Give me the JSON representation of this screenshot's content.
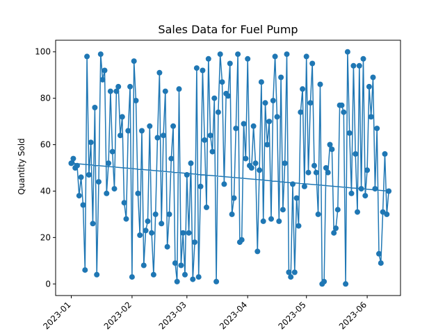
{
  "chart_data": {
    "type": "line",
    "title": "Sales Data for Fuel Pump",
    "xlabel": "",
    "ylabel": "Quantity Sold",
    "xlim": [
      "2022-12-24",
      "2023-06-18"
    ],
    "ylim": [
      -5,
      105
    ],
    "x_ticks": [
      "2023-01",
      "2023-02",
      "2023-03",
      "2023-04",
      "2023-05",
      "2023-06"
    ],
    "y_ticks": [
      0,
      20,
      40,
      60,
      80,
      100
    ],
    "grid": false,
    "legend": "none",
    "color": "#1f77b4",
    "markers": "circle",
    "series": [
      {
        "x": [
          "2023-01-01",
          "2023-01-02",
          "2023-01-03",
          "2023-01-04",
          "2023-01-05",
          "2023-01-06",
          "2023-01-07",
          "2023-01-08",
          "2023-01-09",
          "2023-01-10",
          "2023-01-11",
          "2023-01-12",
          "2023-01-13",
          "2023-01-14",
          "2023-01-15",
          "2023-01-16",
          "2023-01-17",
          "2023-01-18",
          "2023-01-19",
          "2023-01-20",
          "2023-01-21",
          "2023-01-22",
          "2023-01-23",
          "2023-01-24",
          "2023-01-25",
          "2023-01-26",
          "2023-01-27",
          "2023-01-28",
          "2023-01-29",
          "2023-01-30",
          "2023-01-31",
          "2023-02-01",
          "2023-02-02",
          "2023-02-03",
          "2023-02-04",
          "2023-02-05",
          "2023-02-06",
          "2023-02-07",
          "2023-02-08",
          "2023-02-09",
          "2023-02-10",
          "2023-02-11",
          "2023-02-12",
          "2023-02-13",
          "2023-02-14",
          "2023-02-15",
          "2023-02-16",
          "2023-02-17",
          "2023-02-18",
          "2023-02-19",
          "2023-02-20",
          "2023-02-21",
          "2023-02-22",
          "2023-02-23",
          "2023-02-24",
          "2023-02-25",
          "2023-02-26",
          "2023-02-27",
          "2023-02-28",
          "2023-03-01",
          "2023-03-02",
          "2023-03-03",
          "2023-03-04",
          "2023-03-05",
          "2023-03-06",
          "2023-03-07",
          "2023-03-08",
          "2023-03-09",
          "2023-03-10",
          "2023-03-11",
          "2023-03-12",
          "2023-03-13",
          "2023-03-14",
          "2023-03-15",
          "2023-03-16",
          "2023-03-17",
          "2023-03-18",
          "2023-03-19",
          "2023-03-20",
          "2023-03-21",
          "2023-03-22",
          "2023-03-23",
          "2023-03-24",
          "2023-03-25",
          "2023-03-26",
          "2023-03-27",
          "2023-03-28",
          "2023-03-29",
          "2023-03-30",
          "2023-03-31",
          "2023-04-01",
          "2023-04-02",
          "2023-04-03",
          "2023-04-04",
          "2023-04-05",
          "2023-04-06",
          "2023-04-07",
          "2023-04-08",
          "2023-04-09",
          "2023-04-10",
          "2023-04-11",
          "2023-04-12",
          "2023-04-13",
          "2023-04-14",
          "2023-04-15",
          "2023-04-16",
          "2023-04-17",
          "2023-04-18",
          "2023-04-19",
          "2023-04-20",
          "2023-04-21",
          "2023-04-22",
          "2023-04-23",
          "2023-04-24",
          "2023-04-25",
          "2023-04-26",
          "2023-04-27",
          "2023-04-28",
          "2023-04-29",
          "2023-04-30",
          "2023-05-01",
          "2023-05-02",
          "2023-05-03",
          "2023-05-04",
          "2023-05-05",
          "2023-05-06",
          "2023-05-07",
          "2023-05-08",
          "2023-05-09",
          "2023-05-10",
          "2023-05-11",
          "2023-05-12",
          "2023-05-13",
          "2023-05-14",
          "2023-05-15",
          "2023-05-16",
          "2023-05-17",
          "2023-05-18",
          "2023-05-19",
          "2023-05-20",
          "2023-05-21",
          "2023-05-22",
          "2023-05-23",
          "2023-05-24",
          "2023-05-25",
          "2023-05-26",
          "2023-05-27",
          "2023-05-28",
          "2023-05-29",
          "2023-05-30",
          "2023-05-31",
          "2023-06-01",
          "2023-06-02",
          "2023-06-03",
          "2023-06-04",
          "2023-06-05",
          "2023-06-06",
          "2023-06-07",
          "2023-06-08",
          "2023-06-09",
          "2023-06-10",
          "2023-06-11",
          "2023-06-12",
          "2023-01-01"
        ],
        "values": [
          52,
          54,
          50,
          51,
          38,
          46,
          34,
          6,
          98,
          47,
          61,
          26,
          76,
          4,
          44,
          99,
          88,
          92,
          39,
          52,
          83,
          57,
          41,
          83,
          85,
          64,
          72,
          35,
          28,
          66,
          85,
          3,
          96,
          79,
          39,
          21,
          66,
          8,
          23,
          27,
          68,
          22,
          4,
          30,
          63,
          91,
          26,
          64,
          83,
          16,
          30,
          54,
          68,
          9,
          1,
          84,
          8,
          22,
          4,
          47,
          22,
          52,
          2,
          18,
          93,
          3,
          42,
          92,
          62,
          33,
          97,
          64,
          57,
          80,
          1,
          74,
          99,
          87,
          43,
          82,
          81,
          95,
          30,
          37,
          67,
          99,
          18,
          19,
          69,
          54,
          97,
          51,
          50,
          68,
          52,
          14,
          49,
          87,
          27,
          78,
          60,
          70,
          28,
          79,
          98,
          72,
          27,
          89,
          32,
          52,
          99,
          5,
          3,
          43,
          5,
          37,
          25,
          74,
          84,
          42,
          98,
          48,
          78,
          95,
          51,
          48,
          30,
          86,
          0,
          1,
          50,
          48,
          60,
          58,
          22,
          24,
          32,
          77,
          77,
          74,
          0,
          100,
          65,
          39,
          94,
          56,
          31,
          94,
          41,
          97,
          38,
          49,
          85,
          72,
          89,
          41,
          67,
          13,
          9,
          31,
          56,
          30,
          40,
          52
        ]
      }
    ]
  }
}
